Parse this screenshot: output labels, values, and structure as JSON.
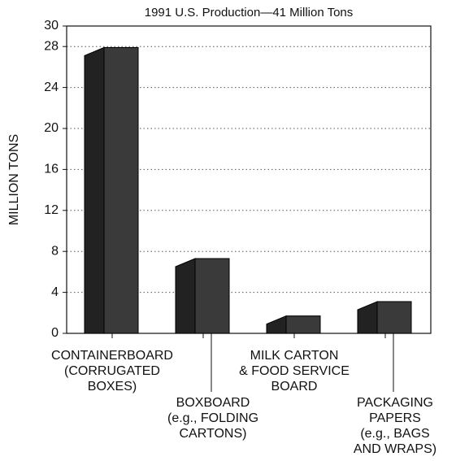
{
  "chart_data": {
    "type": "bar3d",
    "title": "1991 U.S. Production—41 Million Tons",
    "y_label": "MILLION TONS",
    "categories": [
      "CONTAINERBOARD\n(CORRUGATED\nBOXES)",
      "BOXBOARD\n(e.g., FOLDING\nCARTONS)",
      "MILK CARTON\n& FOOD SERVICE\nBOARD",
      "PACKAGING\nPAPERS\n(e.g., BAGS\nAND WRAPS)"
    ],
    "values": [
      27.9,
      7.3,
      1.7,
      3.1
    ],
    "color": "#3a3a3a",
    "ylim": [
      0,
      30
    ],
    "yticks": [
      0,
      4,
      8,
      12,
      16,
      20,
      24,
      28,
      30
    ],
    "grid": true
  }
}
